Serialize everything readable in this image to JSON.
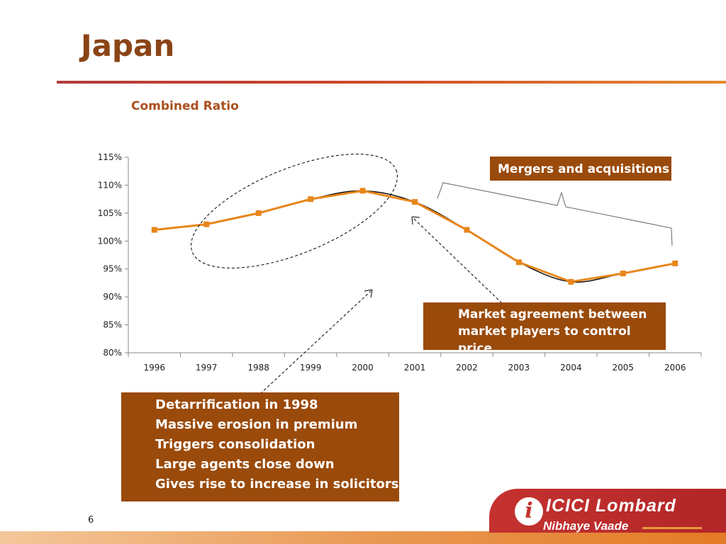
{
  "page": {
    "title": "Japan",
    "page_number": "6"
  },
  "chart_data": {
    "type": "line",
    "title": "Combined Ratio",
    "categories": [
      "1996",
      "1997",
      "1988",
      "1999",
      "2000",
      "2001",
      "2002",
      "2003",
      "2004",
      "2005",
      "2006"
    ],
    "series": [
      {
        "values": [
          1.02,
          1.03,
          1.05,
          1.075,
          1.09,
          1.07,
          1.02,
          0.962,
          0.927,
          0.942,
          0.96
        ]
      }
    ],
    "ylim": [
      0.8,
      1.15
    ],
    "yticks": [
      "80%",
      "85%",
      "90%",
      "95%",
      "100%",
      "105%",
      "110%",
      "115%"
    ],
    "line_color": "#e8861a",
    "trend_color": "#000000",
    "grid": false,
    "annotations": [
      {
        "text": "Mergers and acquisitions"
      },
      {
        "text": "Market agreement between market players to control price"
      },
      {
        "lines": [
          "Detarrification in 1998",
          "Massive erosion in premium",
          "Triggers consolidation",
          "Large agents close down",
          "Gives rise to increase in solicitors"
        ]
      }
    ]
  },
  "footer": {
    "brand": "ICICI Lombard",
    "brand_name": "ICICI",
    "brand_suffix": "Lombard",
    "tagline": "Nibhaye Vaade",
    "brand_color": "#c4322f"
  }
}
